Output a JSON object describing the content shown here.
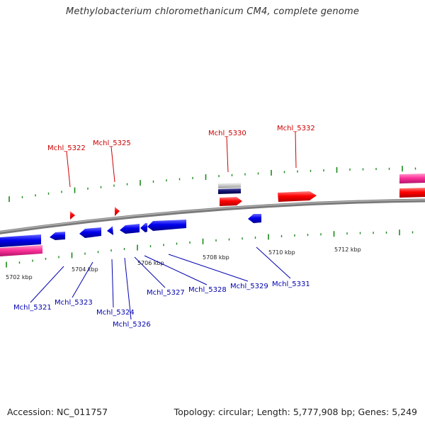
{
  "title": "Methylobacterium chloromethanicum CM4, complete genome",
  "footer": {
    "accession": "Accession: NC_011757",
    "summary": "Topology: circular; Length: 5,777,908 bp; Genes: 5,249"
  },
  "scale_labels": [
    "5702 kbp",
    "5704 kbp",
    "5706 kbp",
    "5708 kbp",
    "5710 kbp",
    "5712 kbp"
  ],
  "forward_genes": [
    "Mchl_5322",
    "Mchl_5325",
    "Mchl_5330",
    "Mchl_5332"
  ],
  "reverse_genes": [
    "Mchl_5321",
    "Mchl_5323",
    "Mchl_5324",
    "Mchl_5326",
    "Mchl_5327",
    "Mchl_5328",
    "Mchl_5329",
    "Mchl_5331"
  ],
  "colors": {
    "forward_cds": "#ff0000",
    "reverse_cds": "#0000ee",
    "rna": "#ff3399",
    "backbone": "#888888",
    "ticks": "#1a8a1a",
    "forward_label": "#cc0000",
    "reverse_label": "#0000b0"
  }
}
